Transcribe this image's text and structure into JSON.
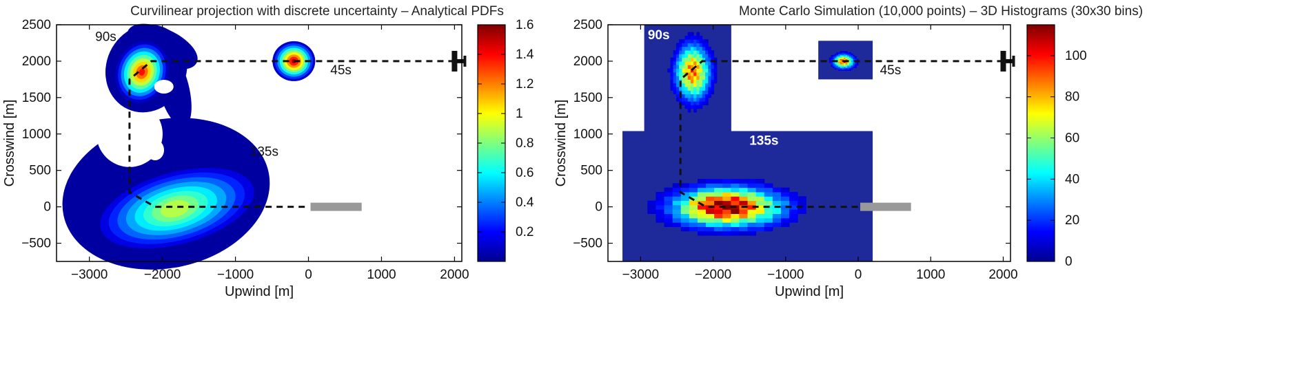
{
  "colors": {
    "jet": [
      "#00008f",
      "#0000ff",
      "#007fff",
      "#00ffff",
      "#7fff7f",
      "#ffff00",
      "#ff7f00",
      "#ff0000",
      "#7f0000"
    ],
    "path_line": "#111111",
    "runway": "#999999",
    "mc_background": "#1f2a9a",
    "panel_frame": "#000000"
  },
  "chart_data": [
    {
      "type": "heatmap",
      "title": "Curvilinear projection with discrete uncertainty – Analytical PDFs",
      "xlabel": "Upwind [m]",
      "ylabel": "Crosswind [m]",
      "xlim": [
        -3450,
        2100
      ],
      "ylim": [
        -750,
        2500
      ],
      "xticks": [
        -3000,
        -2000,
        -1000,
        0,
        1000,
        2000
      ],
      "xtick_labels": [
        "−3000",
        "−2000",
        "−1000",
        "0",
        "1000",
        "2000"
      ],
      "yticks": [
        -500,
        0,
        500,
        1000,
        1500,
        2000,
        2500
      ],
      "ytick_labels": [
        "−500",
        "0",
        "500",
        "1000",
        "1500",
        "2000",
        "2500"
      ],
      "colorbar": {
        "min": 0,
        "max": 1.6,
        "ticks": [
          0.2,
          0.4,
          0.6,
          0.8,
          1,
          1.2,
          1.4,
          1.6
        ],
        "tick_labels": [
          "0.2",
          "0.4",
          "0.6",
          "0.8",
          "1",
          "1.2",
          "1.4",
          "1.6"
        ]
      },
      "regions": [
        {
          "label": "45s",
          "center": [
            -200,
            2000
          ],
          "peak": 1.6,
          "label_at": [
            300,
            1820
          ]
        },
        {
          "label": "90s",
          "center": [
            -2280,
            1850
          ],
          "peak": 1.45,
          "label_at": [
            -2920,
            2280
          ]
        },
        {
          "label": "135s",
          "center": [
            -1800,
            0
          ],
          "peak": 0.95,
          "label_at": [
            -800,
            700
          ]
        }
      ],
      "path": [
        [
          2000,
          2000
        ],
        [
          -2150,
          2000
        ],
        [
          -2450,
          1750
        ],
        [
          -2450,
          200
        ],
        [
          -2100,
          0
        ],
        [
          0,
          0
        ]
      ],
      "aircraft_at": [
        2000,
        2000
      ],
      "runway": {
        "x": [
          0,
          700
        ],
        "y": 0
      }
    },
    {
      "type": "heatmap",
      "title": "Monte Carlo Simulation (10,000 points) – 3D Histograms (30x30 bins)",
      "xlabel": "Upwind [m]",
      "ylabel": "Crosswind [m]",
      "xlim": [
        -3450,
        2100
      ],
      "ylim": [
        -750,
        2500
      ],
      "xticks": [
        -3000,
        -2000,
        -1000,
        0,
        1000,
        2000
      ],
      "xtick_labels": [
        "−3000",
        "−2000",
        "−1000",
        "0",
        "1000",
        "2000"
      ],
      "yticks": [
        -500,
        0,
        500,
        1000,
        1500,
        2000,
        2500
      ],
      "ytick_labels": [
        "−500",
        "0",
        "500",
        "1000",
        "1500",
        "2000",
        "2500"
      ],
      "colorbar": {
        "min": 0,
        "max": 115,
        "ticks": [
          0,
          20,
          40,
          60,
          80,
          100
        ],
        "tick_labels": [
          "0",
          "20",
          "40",
          "60",
          "80",
          "100"
        ]
      },
      "regions": [
        {
          "label": "45s",
          "center": [
            -200,
            2000
          ],
          "peak": 95,
          "label_at": [
            300,
            1820
          ]
        },
        {
          "label": "90s",
          "center": [
            -2280,
            1850
          ],
          "peak": 90,
          "label_at": [
            -2900,
            2300
          ]
        },
        {
          "label": "135s",
          "center": [
            -1800,
            0
          ],
          "peak": 115,
          "label_at": [
            -1500,
            850
          ]
        }
      ],
      "histogram_extents": [
        {
          "label": "90s",
          "x": [
            -2950,
            -1750
          ],
          "y": [
            1000,
            2500
          ]
        },
        {
          "label": "45s",
          "x": [
            -550,
            200
          ],
          "y": [
            1750,
            2280
          ]
        },
        {
          "label": "135s",
          "x": [
            -3250,
            200
          ],
          "y": [
            -750,
            1040
          ]
        }
      ],
      "path": [
        [
          2000,
          2000
        ],
        [
          -2150,
          2000
        ],
        [
          -2450,
          1750
        ],
        [
          -2450,
          200
        ],
        [
          -2100,
          0
        ],
        [
          0,
          0
        ]
      ],
      "aircraft_at": [
        2000,
        2000
      ],
      "runway": {
        "x": [
          0,
          700
        ],
        "y": 0
      }
    }
  ]
}
